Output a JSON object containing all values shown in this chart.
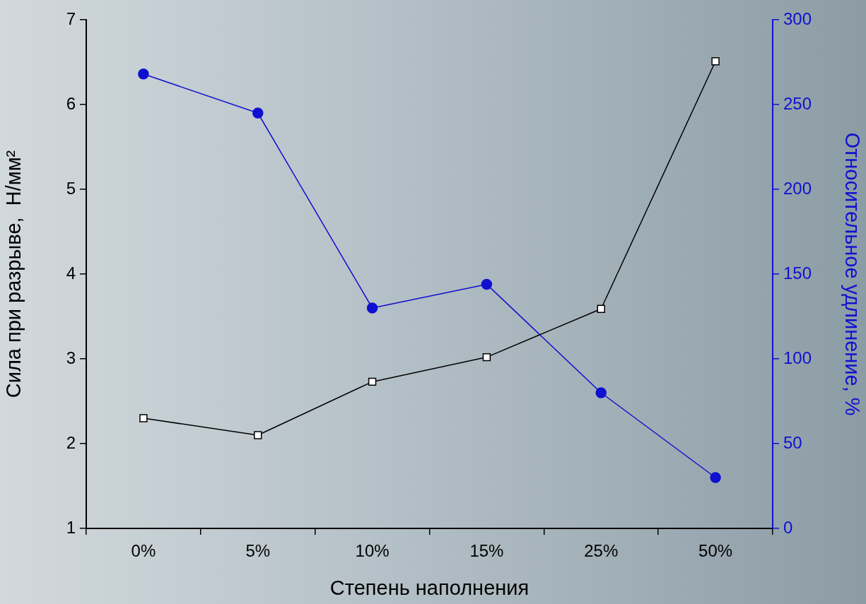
{
  "chart_data": {
    "type": "line",
    "xlabel": "Степень наполнения",
    "ylabel": "Сила при разрыве,  Н/мм²",
    "y2label": "Относительное удлинение, %",
    "categories": [
      "0%",
      "5%",
      "10%",
      "15%",
      "25%",
      "50%"
    ],
    "series": [
      {
        "color": "#000000",
        "marker": "square",
        "axis": "y",
        "values": [
          2.3,
          2.1,
          2.73,
          3.02,
          3.59,
          6.51
        ]
      },
      {
        "color": "#1010d0",
        "marker": "circle",
        "axis": "y2",
        "values": [
          268,
          245,
          130,
          144,
          80,
          30
        ]
      }
    ],
    "ylim": [
      1,
      7
    ],
    "yticks": [
      1,
      2,
      3,
      4,
      5,
      6,
      7
    ],
    "y2lim": [
      0,
      300
    ],
    "y2ticks": [
      0,
      50,
      100,
      150,
      200,
      250,
      300
    ],
    "grid": false,
    "legend": false
  }
}
